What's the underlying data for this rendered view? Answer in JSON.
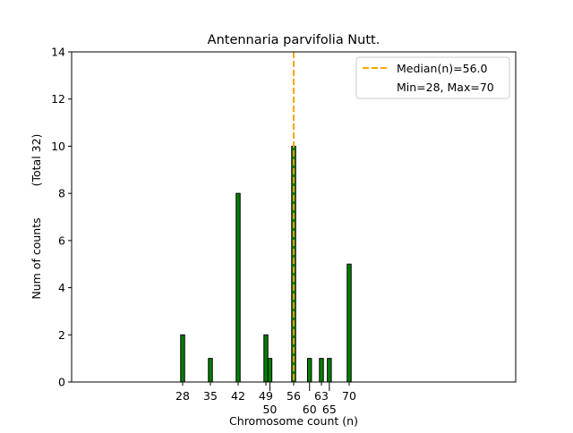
{
  "chart_data": {
    "type": "bar",
    "title": "Antennaria parvifolia Nutt.",
    "xlabel": "Chromosome count (n)",
    "ylabel": "Num of counts",
    "ylabel2": "(Total 32)",
    "x": [
      28,
      35,
      42,
      49,
      50,
      56,
      60,
      63,
      65,
      70
    ],
    "values": [
      2,
      1,
      8,
      2,
      1,
      10,
      1,
      1,
      1,
      5
    ],
    "xticks": [
      "28",
      "35",
      "42",
      "49",
      "50",
      "56",
      "60",
      "63",
      "65",
      "70"
    ],
    "yticks": [
      "0",
      "2",
      "4",
      "6",
      "8",
      "10",
      "12",
      "14"
    ],
    "xlim": [
      0,
      112
    ],
    "ylim": [
      0,
      14
    ],
    "bar_color": "#008000",
    "median": 56.0,
    "median_color": "#FFA500",
    "legend": {
      "placement": "top-right",
      "entries": [
        "Median(n)=56.0",
        "Min=28, Max=70"
      ]
    },
    "grid": false
  }
}
